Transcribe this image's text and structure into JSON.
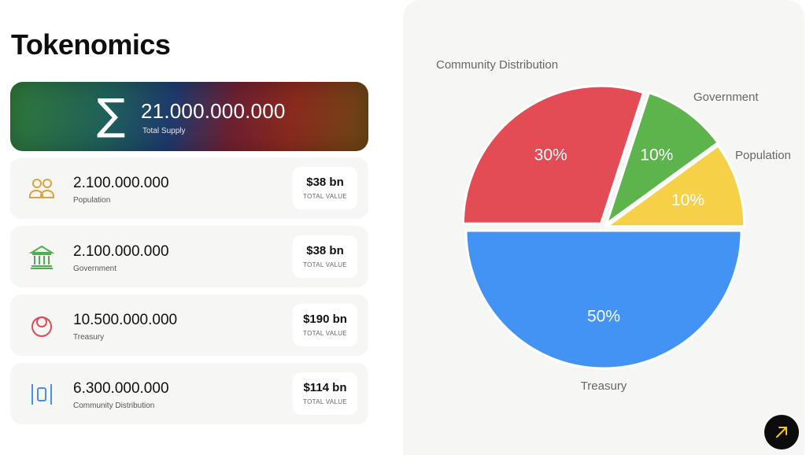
{
  "page": {
    "title": "Tokenomics"
  },
  "total_supply": {
    "amount": "21.000.000.000",
    "label": "Total Supply",
    "icon": "sigma-icon"
  },
  "allocations": [
    {
      "id": "population",
      "amount": "2.100.000.000",
      "name": "Population",
      "value": "$38 bn",
      "value_label": "TOTAL VALUE",
      "icon": "people-icon",
      "color": "#d9a43b"
    },
    {
      "id": "government",
      "amount": "2.100.000.000",
      "name": "Government",
      "value": "$38 bn",
      "value_label": "TOTAL VALUE",
      "icon": "bank-icon",
      "color": "#4caf50"
    },
    {
      "id": "treasury",
      "amount": "10.500.000.000",
      "name": "Treasury",
      "value": "$190 bn",
      "value_label": "TOTAL VALUE",
      "icon": "treasury-icon",
      "color": "#e04c55"
    },
    {
      "id": "community",
      "amount": "6.300.000.000",
      "name": "Community Distribution",
      "value": "$114 bn",
      "value_label": "TOTAL VALUE",
      "icon": "columns-icon",
      "color": "#4a90e2"
    }
  ],
  "chart_data": {
    "type": "pie",
    "slices": [
      {
        "name": "Treasury",
        "value": 50,
        "label": "50%",
        "color": "#4393f4"
      },
      {
        "name": "Community Distribution",
        "value": 30,
        "label": "30%",
        "color": "#e34b55"
      },
      {
        "name": "Government",
        "value": 10,
        "label": "10%",
        "color": "#5db34c"
      },
      {
        "name": "Population",
        "value": 10,
        "label": "10%",
        "color": "#f6d046"
      }
    ]
  },
  "action_button": {
    "icon": "arrow-up-right-icon",
    "accent": "#f5c518"
  }
}
